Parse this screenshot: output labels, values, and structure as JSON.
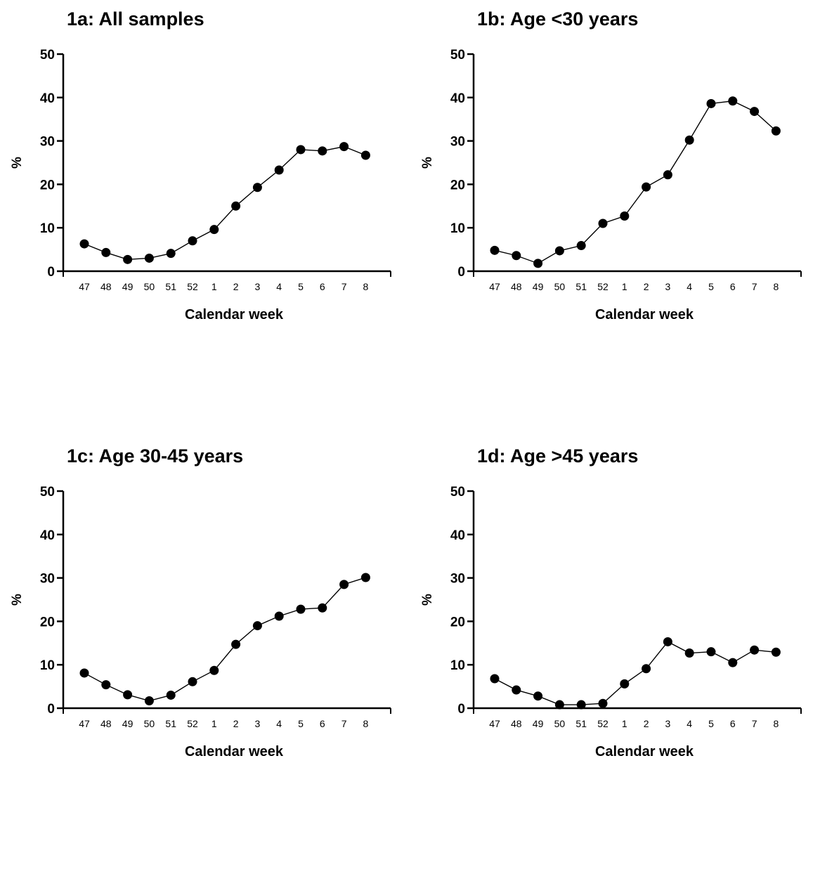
{
  "chart_data": [
    {
      "type": "line",
      "title": "1a: All samples",
      "xlabel": "Calendar week",
      "ylabel": "%",
      "ylim": [
        0,
        50
      ],
      "yticks": [
        0,
        10,
        20,
        30,
        40,
        50
      ],
      "categories": [
        "47",
        "48",
        "49",
        "50",
        "51",
        "52",
        "1",
        "2",
        "3",
        "4",
        "5",
        "6",
        "7",
        "8"
      ],
      "values": [
        6.3,
        4.3,
        2.7,
        3.0,
        4.1,
        7.0,
        9.6,
        15.0,
        19.3,
        23.3,
        28.0,
        27.7,
        28.7,
        26.7
      ]
    },
    {
      "type": "line",
      "title": "1b: Age <30 years",
      "xlabel": "Calendar week",
      "ylabel": "%",
      "ylim": [
        0,
        50
      ],
      "yticks": [
        0,
        10,
        20,
        30,
        40,
        50
      ],
      "categories": [
        "47",
        "48",
        "49",
        "50",
        "51",
        "52",
        "1",
        "2",
        "3",
        "4",
        "5",
        "6",
        "7",
        "8"
      ],
      "values": [
        4.8,
        3.6,
        1.8,
        4.7,
        5.9,
        11.0,
        12.7,
        19.4,
        22.2,
        30.2,
        38.6,
        39.2,
        36.8,
        32.3
      ]
    },
    {
      "type": "line",
      "title": "1c: Age 30-45 years",
      "xlabel": "Calendar week",
      "ylabel": "%",
      "ylim": [
        0,
        50
      ],
      "yticks": [
        0,
        10,
        20,
        30,
        40,
        50
      ],
      "categories": [
        "47",
        "48",
        "49",
        "50",
        "51",
        "52",
        "1",
        "2",
        "3",
        "4",
        "5",
        "6",
        "7",
        "8"
      ],
      "values": [
        8.1,
        5.4,
        3.1,
        1.7,
        3.0,
        6.1,
        8.7,
        14.7,
        19.0,
        21.2,
        22.8,
        23.1,
        28.5,
        30.1
      ]
    },
    {
      "type": "line",
      "title": "1d: Age >45 years",
      "xlabel": "Calendar week",
      "ylabel": "%",
      "ylim": [
        0,
        50
      ],
      "yticks": [
        0,
        10,
        20,
        30,
        40,
        50
      ],
      "categories": [
        "47",
        "48",
        "49",
        "50",
        "51",
        "52",
        "1",
        "2",
        "3",
        "4",
        "5",
        "6",
        "7",
        "8"
      ],
      "values": [
        6.8,
        4.2,
        2.8,
        0.8,
        0.8,
        1.1,
        5.6,
        9.1,
        15.3,
        12.7,
        13.0,
        10.5,
        13.4,
        12.9
      ]
    }
  ]
}
